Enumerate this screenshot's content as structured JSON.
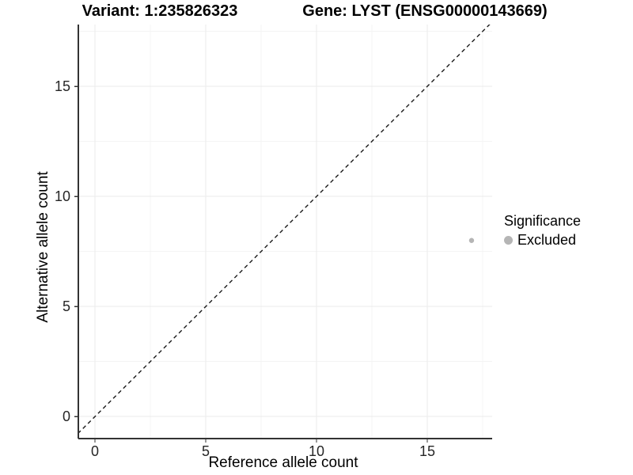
{
  "chart_data": {
    "type": "scatter",
    "title_left": "Variant: 1:235826323",
    "title_right": "Gene: LYST (ENSG00000143669)",
    "xlabel": "Reference allele count",
    "ylabel": "Alternative allele count",
    "xlim": [
      -0.75,
      17.93
    ],
    "ylim": [
      -1.0,
      17.81
    ],
    "x_major_ticks": [
      0,
      5,
      10,
      15
    ],
    "y_major_ticks": [
      0,
      5,
      10,
      15
    ],
    "x_minor_gridlines": [
      2.5,
      7.5,
      12.5,
      17.5
    ],
    "y_minor_gridlines": [
      2.5,
      7.5,
      12.5,
      17.5
    ],
    "grid": true,
    "legend_position": "right",
    "identity_line": {
      "style": "dashed",
      "equation": "y = x",
      "from": [
        -1,
        -1
      ],
      "to": [
        18.5,
        18.5
      ],
      "color": "#1a1a1a"
    },
    "points": [
      {
        "x": 17,
        "y": 8,
        "significance": "Excluded"
      }
    ],
    "point_color": "#b5b5b5",
    "legend": {
      "title": "Significance",
      "items": [
        {
          "label": "Excluded",
          "color": "#b5b5b5"
        }
      ]
    },
    "colors": {
      "axis_line": "#333333",
      "tick_mark": "#333333",
      "tick_label": "#262626",
      "major_gridline": "#ebebeb",
      "minor_gridline": "#f4f4f4",
      "background": "#ffffff"
    }
  }
}
